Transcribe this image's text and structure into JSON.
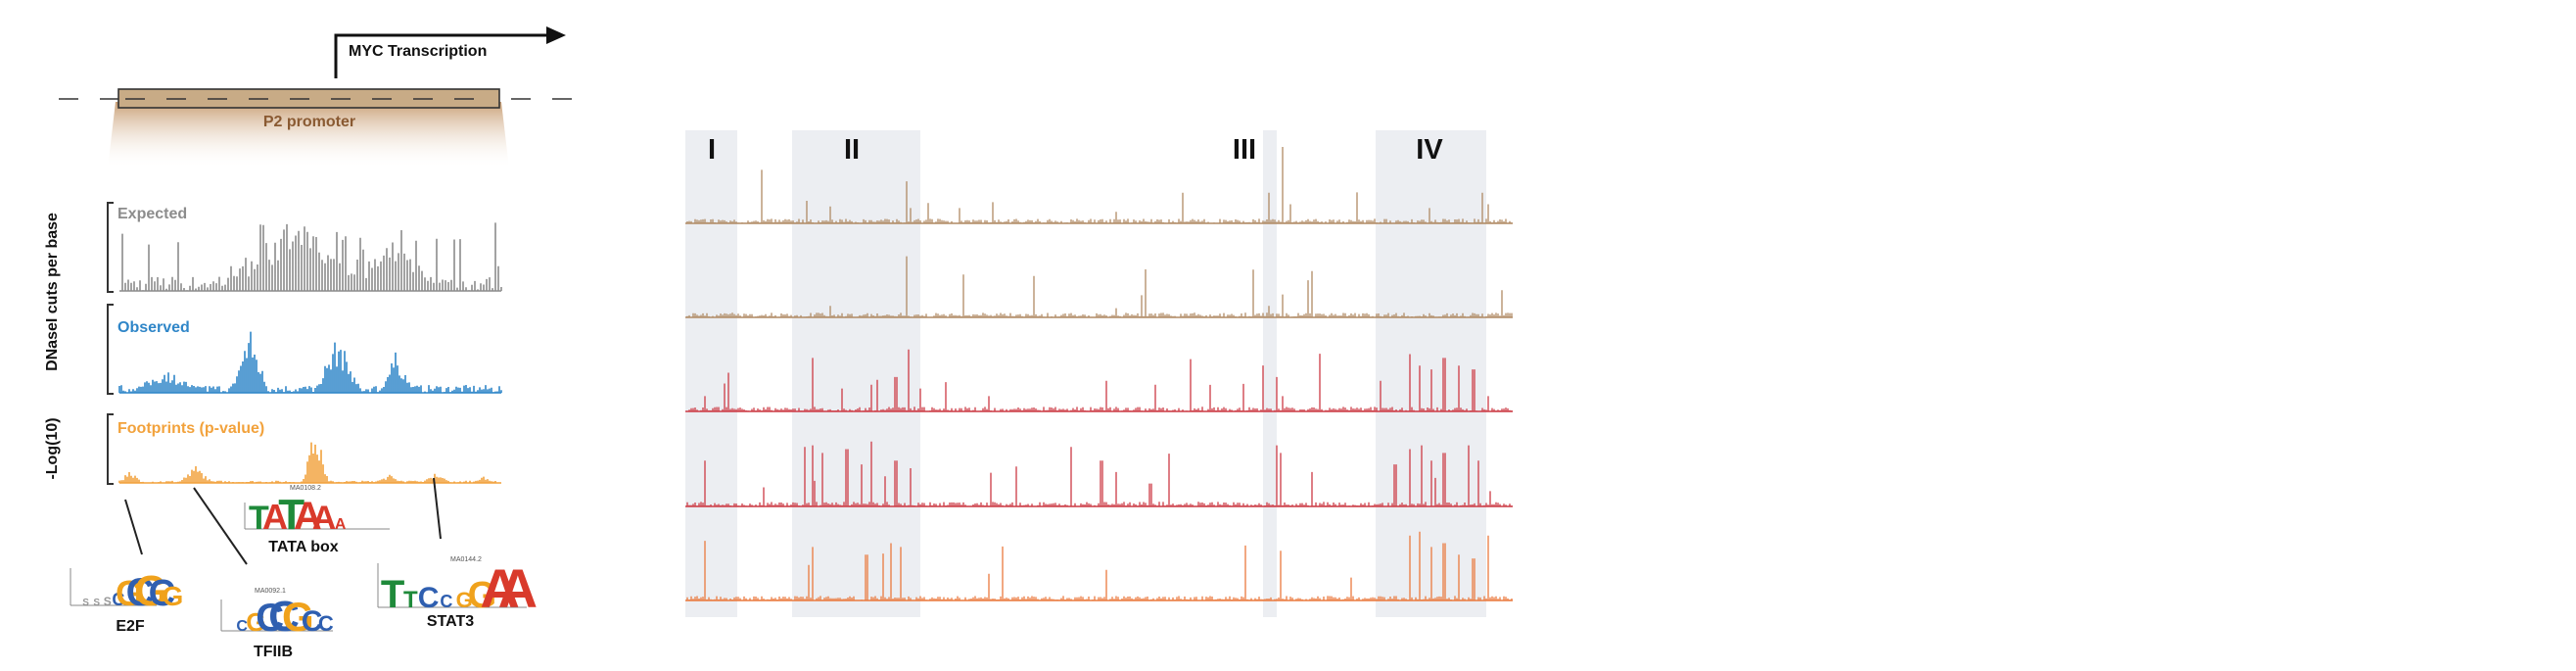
{
  "transcription_label": "MYC Transcription",
  "promoter_label": "P2 promoter",
  "y_axis_cuts": "DNaseI cuts per base",
  "y_axis_log": "-Log(10)",
  "tracks": [
    {
      "label": "Expected",
      "color": "#8c8c8c"
    },
    {
      "label": "Observed",
      "color": "#2f86c8"
    },
    {
      "label": "Footprints (p-value)",
      "color": "#f2a23c"
    }
  ],
  "motifs": [
    {
      "name": "E2F",
      "id": "",
      "letters": "ssscGCGCG"
    },
    {
      "name": "TFIIB",
      "id": "MA0092.1",
      "letters": "CGCCGCC"
    },
    {
      "name": "TATA box",
      "id": "MA0108.2",
      "letters": "TATAAA"
    },
    {
      "name": "STAT3",
      "id": "MA0144.2",
      "letters": "TTCcGGAA"
    }
  ],
  "regions": [
    "I",
    "II",
    "III",
    "IV"
  ],
  "right_tracks": [
    {
      "color": "#b08a64"
    },
    {
      "color": "#b08a64"
    },
    {
      "color": "#cc3a44"
    },
    {
      "color": "#cc3a44"
    },
    {
      "color": "#ea7a3e"
    }
  ],
  "colors": {
    "promoter_fill": "#c8ab86",
    "promoter_label": "#8a5a32",
    "region_shade": "#eceef2",
    "motif_A": "#d93a2b",
    "motif_C": "#2f5fb0",
    "motif_G": "#f0a21c",
    "motif_T": "#1f8a3a"
  }
}
